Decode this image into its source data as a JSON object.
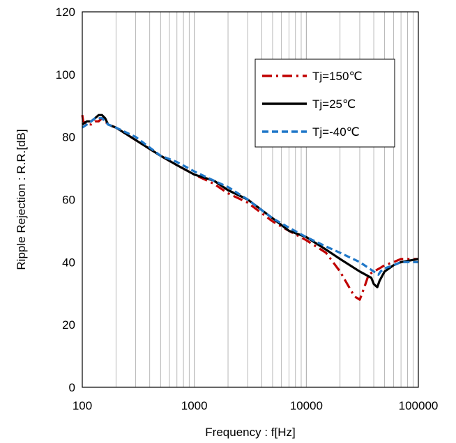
{
  "chart_data": {
    "type": "line",
    "title": "",
    "xlabel": "Frequency : f[Hz]",
    "ylabel": "Ripple Rejection : R.R.[dB]",
    "xscale": "log",
    "xlim": [
      100,
      100000
    ],
    "ylim": [
      0,
      120
    ],
    "x_ticks": [
      "100",
      "1000",
      "10000",
      "100000"
    ],
    "y_ticks": [
      "0",
      "20",
      "40",
      "60",
      "80",
      "100",
      "120"
    ],
    "grid": "vertical minor and major gridlines on log x-axis",
    "legend_position": "top-right",
    "series": [
      {
        "name": "Tj=150℃",
        "color": "#C00000",
        "style": "dash-dot",
        "points": [
          [
            100,
            87
          ],
          [
            102,
            85
          ],
          [
            110,
            84
          ],
          [
            120,
            84
          ],
          [
            130,
            85
          ],
          [
            140,
            85
          ],
          [
            150,
            86
          ],
          [
            160,
            85
          ],
          [
            170,
            84
          ],
          [
            200,
            83
          ],
          [
            300,
            79
          ],
          [
            500,
            74
          ],
          [
            700,
            71
          ],
          [
            1000,
            68
          ],
          [
            1500,
            65
          ],
          [
            2000,
            62
          ],
          [
            3000,
            59
          ],
          [
            5000,
            53
          ],
          [
            7000,
            50
          ],
          [
            10000,
            47
          ],
          [
            15000,
            43
          ],
          [
            20000,
            37
          ],
          [
            25000,
            31
          ],
          [
            27000,
            29
          ],
          [
            30000,
            28
          ],
          [
            33000,
            32
          ],
          [
            36000,
            36
          ],
          [
            40000,
            37
          ],
          [
            45000,
            38
          ],
          [
            50000,
            39
          ],
          [
            60000,
            40
          ],
          [
            70000,
            41
          ],
          [
            80000,
            41
          ],
          [
            100000,
            41
          ]
        ]
      },
      {
        "name": "Tj=25℃",
        "color": "#000000",
        "style": "solid",
        "points": [
          [
            100,
            84
          ],
          [
            110,
            85
          ],
          [
            120,
            85
          ],
          [
            130,
            86
          ],
          [
            140,
            87
          ],
          [
            150,
            87
          ],
          [
            160,
            86
          ],
          [
            170,
            84
          ],
          [
            200,
            83
          ],
          [
            300,
            79
          ],
          [
            500,
            74
          ],
          [
            700,
            71
          ],
          [
            1000,
            68
          ],
          [
            1500,
            66
          ],
          [
            2000,
            63
          ],
          [
            3000,
            60
          ],
          [
            5000,
            54
          ],
          [
            7000,
            50
          ],
          [
            10000,
            48
          ],
          [
            15000,
            44
          ],
          [
            20000,
            41
          ],
          [
            30000,
            37
          ],
          [
            38000,
            35
          ],
          [
            40000,
            33
          ],
          [
            43000,
            32
          ],
          [
            45000,
            34
          ],
          [
            50000,
            37
          ],
          [
            60000,
            39
          ],
          [
            70000,
            40
          ],
          [
            100000,
            41
          ]
        ]
      },
      {
        "name": "Tj=-40℃",
        "color": "#1F77C8",
        "style": "dashed",
        "points": [
          [
            100,
            83
          ],
          [
            110,
            84
          ],
          [
            120,
            85
          ],
          [
            130,
            86
          ],
          [
            140,
            86
          ],
          [
            150,
            86
          ],
          [
            160,
            85
          ],
          [
            170,
            84
          ],
          [
            200,
            83
          ],
          [
            300,
            80
          ],
          [
            500,
            74
          ],
          [
            700,
            72
          ],
          [
            1000,
            69
          ],
          [
            1500,
            66
          ],
          [
            2000,
            64
          ],
          [
            3000,
            60
          ],
          [
            5000,
            54
          ],
          [
            7000,
            51
          ],
          [
            10000,
            48
          ],
          [
            15000,
            45
          ],
          [
            20000,
            43
          ],
          [
            30000,
            40
          ],
          [
            40000,
            37
          ],
          [
            44000,
            36
          ],
          [
            46000,
            37
          ],
          [
            50000,
            38
          ],
          [
            60000,
            39
          ],
          [
            70000,
            40
          ],
          [
            100000,
            40
          ]
        ]
      }
    ]
  }
}
